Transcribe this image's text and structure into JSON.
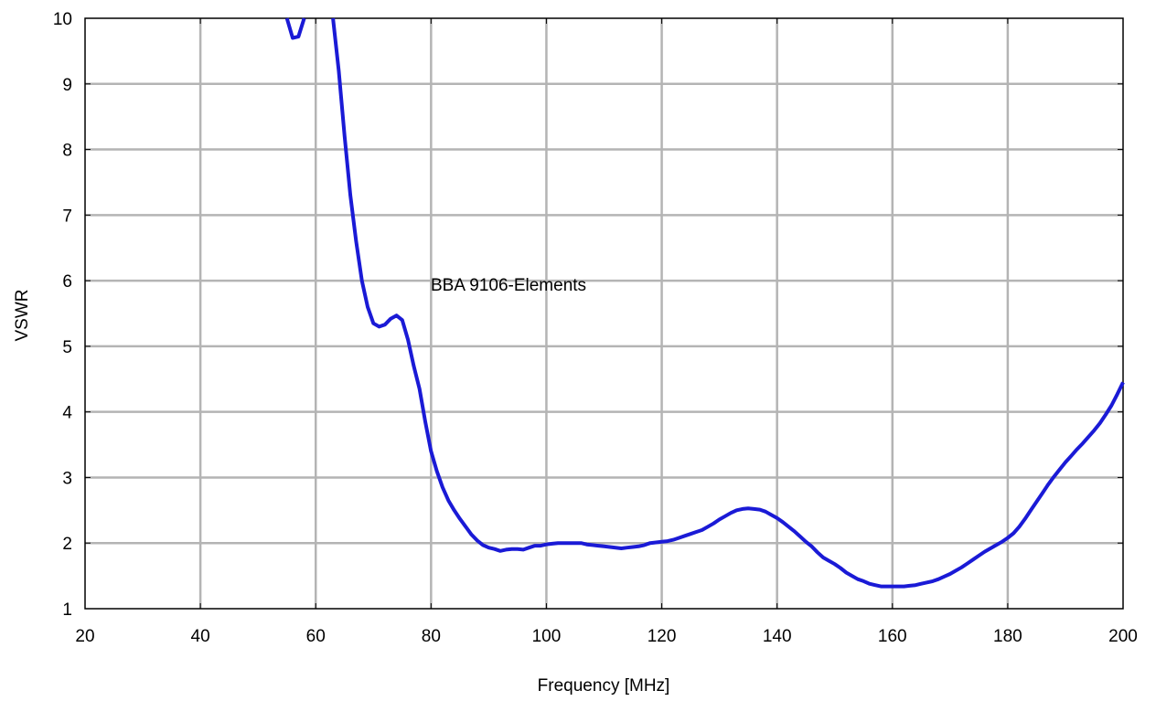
{
  "chart_data": {
    "type": "line",
    "xlabel": "Frequency [MHz]",
    "ylabel": "VSWR",
    "xlim": [
      20,
      200
    ],
    "ylim": [
      1,
      10
    ],
    "xticks": [
      20,
      40,
      60,
      80,
      100,
      120,
      140,
      160,
      180,
      200
    ],
    "yticks": [
      1,
      2,
      3,
      4,
      5,
      6,
      7,
      8,
      9,
      10
    ],
    "grid": true,
    "annotation": "BBA 9106-Elements",
    "line_color": "#1a1ad6",
    "series": [
      {
        "segments": [
          {
            "x": [
              55,
              56,
              57,
              58
            ],
            "y": [
              10,
              9.7,
              9.72,
              10
            ]
          },
          {
            "x": [
              63,
              64,
              65,
              66,
              67,
              68,
              69,
              70,
              71,
              72,
              73,
              74,
              75,
              76,
              77,
              78,
              79,
              80,
              81,
              82,
              83,
              84,
              85,
              86,
              87,
              88,
              89,
              90,
              91,
              92,
              93,
              94,
              95,
              96,
              97,
              98,
              99,
              100,
              101,
              102,
              103,
              104,
              105,
              106,
              107,
              108,
              109,
              110,
              111,
              112,
              113,
              114,
              115,
              116,
              117,
              118,
              119,
              120,
              121,
              122,
              123,
              124,
              125,
              126,
              127,
              128,
              129,
              130,
              131,
              132,
              133,
              134,
              135,
              136,
              137,
              138,
              139,
              140,
              141,
              142,
              143,
              144,
              145,
              146,
              147,
              148,
              149,
              150,
              151,
              152,
              153,
              154,
              155,
              156,
              157,
              158,
              159,
              160,
              161,
              162,
              163,
              164,
              165,
              166,
              167,
              168,
              169,
              170,
              171,
              172,
              173,
              174,
              175,
              176,
              177,
              178,
              179,
              180,
              181,
              182,
              183,
              184,
              185,
              186,
              187,
              188,
              189,
              190,
              191,
              192,
              193,
              194,
              195,
              196,
              197,
              198,
              199,
              200
            ],
            "y": [
              10,
              9.2,
              8.2,
              7.3,
              6.6,
              6.0,
              5.6,
              5.35,
              5.3,
              5.33,
              5.42,
              5.47,
              5.4,
              5.1,
              4.7,
              4.35,
              3.85,
              3.4,
              3.1,
              2.85,
              2.65,
              2.5,
              2.37,
              2.25,
              2.13,
              2.04,
              1.97,
              1.93,
              1.91,
              1.88,
              1.9,
              1.91,
              1.91,
              1.9,
              1.93,
              1.96,
              1.96,
              1.98,
              1.99,
              2.0,
              2.0,
              2.0,
              2.0,
              2.0,
              1.98,
              1.97,
              1.96,
              1.95,
              1.94,
              1.93,
              1.92,
              1.93,
              1.94,
              1.95,
              1.97,
              2.0,
              2.01,
              2.02,
              2.03,
              2.05,
              2.08,
              2.11,
              2.14,
              2.17,
              2.2,
              2.25,
              2.3,
              2.36,
              2.41,
              2.46,
              2.5,
              2.52,
              2.53,
              2.52,
              2.51,
              2.48,
              2.43,
              2.38,
              2.32,
              2.25,
              2.18,
              2.1,
              2.02,
              1.95,
              1.86,
              1.78,
              1.73,
              1.68,
              1.62,
              1.55,
              1.5,
              1.45,
              1.42,
              1.38,
              1.36,
              1.34,
              1.34,
              1.34,
              1.34,
              1.34,
              1.35,
              1.36,
              1.38,
              1.4,
              1.42,
              1.45,
              1.49,
              1.53,
              1.58,
              1.63,
              1.69,
              1.75,
              1.81,
              1.87,
              1.92,
              1.97,
              2.02,
              2.08,
              2.15,
              2.25,
              2.37,
              2.5,
              2.63,
              2.76,
              2.89,
              3.01,
              3.12,
              3.23,
              3.33,
              3.43,
              3.52,
              3.62,
              3.72,
              3.83,
              3.96,
              4.1,
              4.27,
              4.45
            ]
          }
        ]
      }
    ]
  }
}
